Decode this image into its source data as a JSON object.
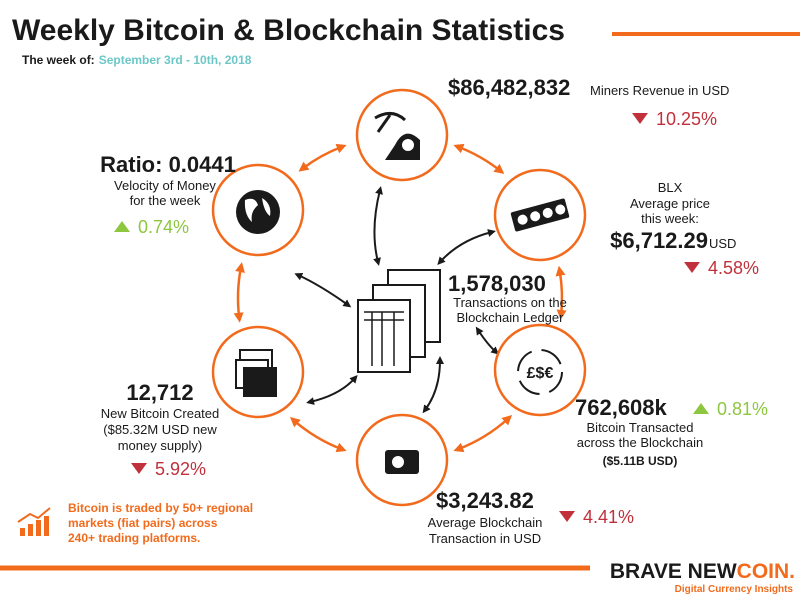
{
  "header": {
    "title": "Weekly Bitcoin & Blockchain Statistics",
    "week_label": "The week of:",
    "week": "September 3rd - 10th, 2018"
  },
  "stats": [
    {
      "value": "$86,482,832",
      "label_lines": [
        "Miners Revenue in USD"
      ],
      "change": "10.25%",
      "direction": "down"
    },
    {
      "value": "Ratio: 0.0441",
      "label_lines": [
        "Velocity of Money",
        "for the week"
      ],
      "change": "0.74%",
      "direction": "up"
    },
    {
      "ticker": "BLX",
      "label_lines": [
        "Average price",
        "this week:"
      ],
      "value": "$6,712.29",
      "unit": "USD",
      "change": "4.58%",
      "direction": "down"
    },
    {
      "value": "1,578,030",
      "label_lines": [
        "Transactions on the",
        "Blockchain Ledger"
      ]
    },
    {
      "value": "762,608k",
      "label_lines": [
        "Bitcoin Transacted",
        "across the Blockchain"
      ],
      "note": "($5.11B USD)",
      "change": "0.81%",
      "direction": "up"
    },
    {
      "value": "12,712",
      "label_lines": [
        "New Bitcoin Created",
        "($85.32M USD new",
        "money supply)"
      ],
      "change": "5.92%",
      "direction": "down"
    },
    {
      "value": "$3,243.82",
      "label_lines": [
        "Average Blockchain",
        "Transaction in USD"
      ],
      "change": "4.41%",
      "direction": "down"
    }
  ],
  "footnote": [
    "Bitcoin is traded by 50+ regional",
    "markets (fiat pairs) across",
    "240+ trading platforms."
  ],
  "logo": {
    "primary": "BRAVE NEW",
    "accent": "COIN.",
    "tagline": "Digital Currency Insights"
  }
}
